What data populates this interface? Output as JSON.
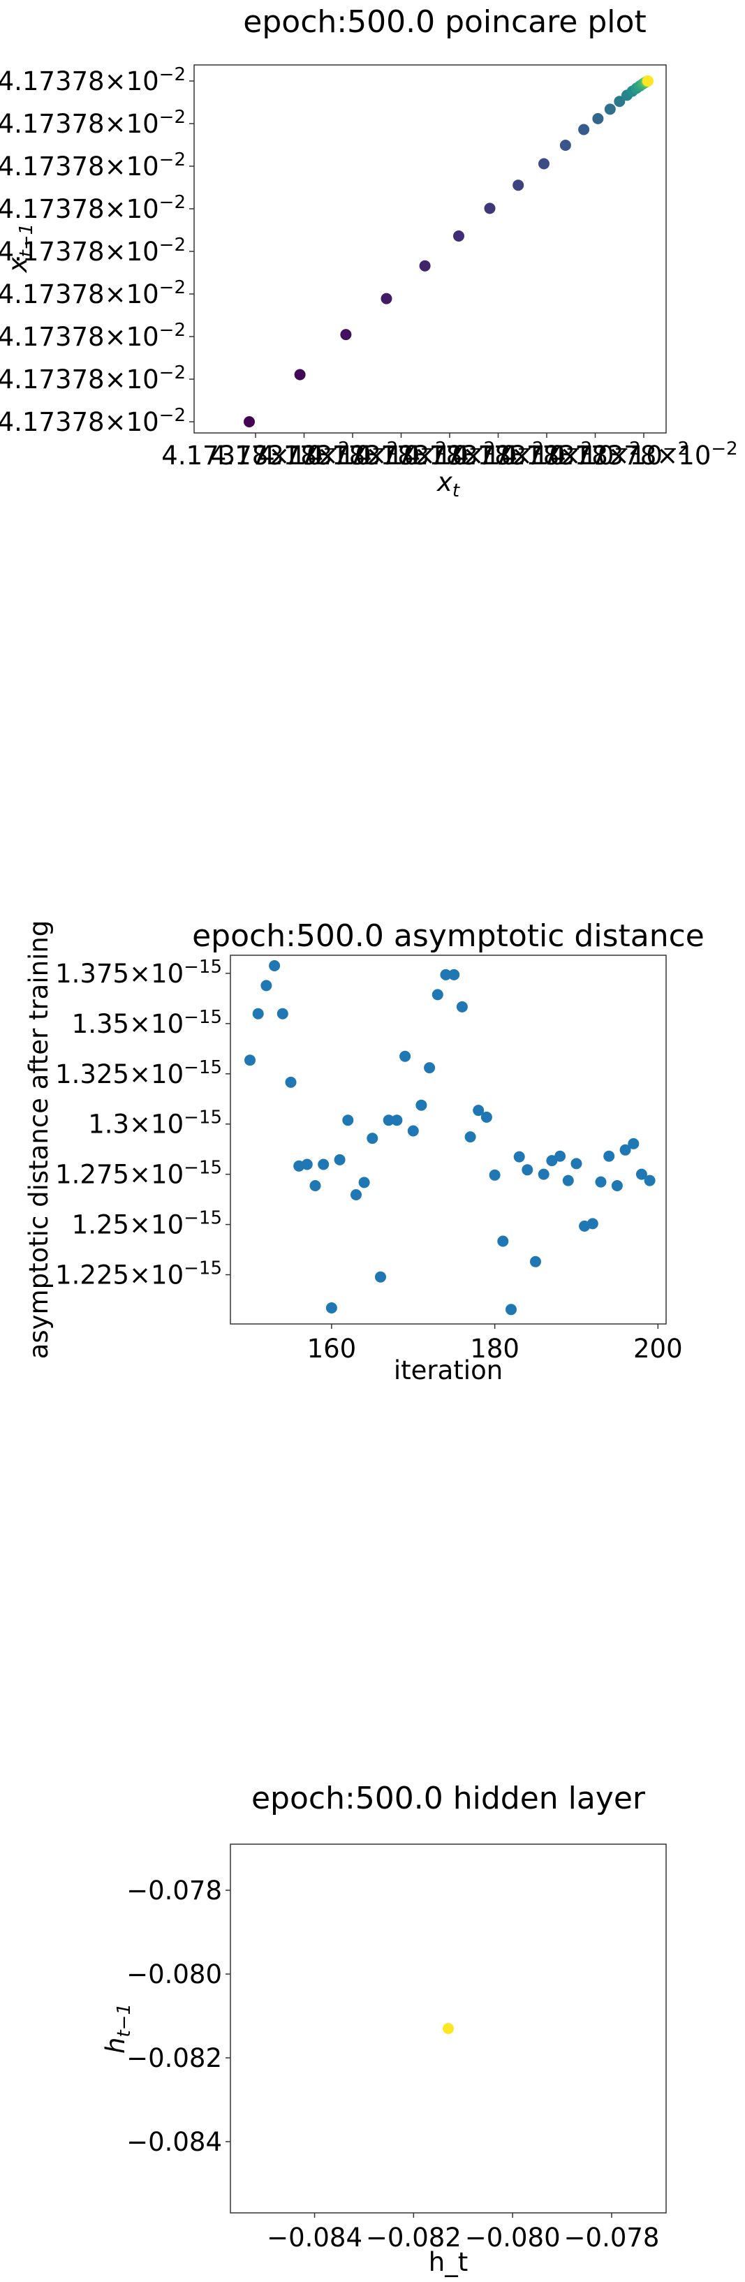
{
  "chart_data": [
    {
      "type": "scatter",
      "title": "epoch:500.0 poincare plot",
      "xlabel": "x_t",
      "ylabel": "x_{t-1}",
      "x_tick_labels": [
        "4.17378 × 10^-2",
        "4.17378 × 10^-2",
        "4.17378 × 10^-2",
        "4.17378 × 10^-2",
        "4.17378 × 10^-2",
        "4.17378 × 10^-2",
        "4.17378 × 10^-2",
        "4.17378 × 10^-2",
        "4.17378 × 10^-2"
      ],
      "y_tick_labels": [
        "4.17378 × 10^-2",
        "4.17378 × 10^-2",
        "4.17378 × 10^-2",
        "4.17378 × 10^-2",
        "4.17378 × 10^-2",
        "4.17378 × 10^-2",
        "4.17378 × 10^-2",
        "4.17378 × 10^-2",
        "4.17378 × 10^-2"
      ],
      "colormap": "viridis",
      "points": [
        {
          "x": 0.0,
          "y": 0.0,
          "c": 0.0
        },
        {
          "x": 0.1271,
          "y": 0.1384,
          "c": 0.02
        },
        {
          "x": 0.2424,
          "y": 0.2559,
          "c": 0.05
        },
        {
          "x": 0.3441,
          "y": 0.3615,
          "c": 0.08
        },
        {
          "x": 0.4407,
          "y": 0.4575,
          "c": 0.11
        },
        {
          "x": 0.5254,
          "y": 0.5451,
          "c": 0.14
        },
        {
          "x": 0.6034,
          "y": 0.6263,
          "c": 0.17
        },
        {
          "x": 0.6746,
          "y": 0.6942,
          "c": 0.2
        },
        {
          "x": 0.739,
          "y": 0.7572,
          "c": 0.23
        },
        {
          "x": 0.7932,
          "y": 0.8115,
          "c": 0.26
        },
        {
          "x": 0.839,
          "y": 0.8575,
          "c": 0.29
        },
        {
          "x": 0.8746,
          "y": 0.8895,
          "c": 0.33
        },
        {
          "x": 0.9051,
          "y": 0.9172,
          "c": 0.37
        },
        {
          "x": 0.9288,
          "y": 0.9402,
          "c": 0.41
        },
        {
          "x": 0.9475,
          "y": 0.9581,
          "c": 0.45
        },
        {
          "x": 0.961,
          "y": 0.9701,
          "c": 0.49
        },
        {
          "x": 0.9712,
          "y": 0.9787,
          "c": 0.53
        },
        {
          "x": 0.9797,
          "y": 0.9855,
          "c": 0.57
        },
        {
          "x": 0.9864,
          "y": 0.9908,
          "c": 0.61
        },
        {
          "x": 0.9915,
          "y": 0.9946,
          "c": 0.66
        },
        {
          "x": 0.9949,
          "y": 0.997,
          "c": 0.71
        },
        {
          "x": 0.9975,
          "y": 0.9986,
          "c": 0.77
        },
        {
          "x": 0.999,
          "y": 0.9995,
          "c": 0.84
        },
        {
          "x": 0.9997,
          "y": 0.9999,
          "c": 0.92
        },
        {
          "x": 1.0,
          "y": 1.0,
          "c": 1.0
        }
      ]
    },
    {
      "type": "scatter",
      "title": "epoch:500.0 asymptotic distance",
      "xlabel": "iteration",
      "ylabel": "asymptotic distance after training",
      "xlim": [
        147.6,
        201.0
      ],
      "ylim": [
        1.2005e-15,
        1.384e-15
      ],
      "x_ticks": [
        160,
        180,
        200
      ],
      "y_ticks": [
        {
          "value": 1.225e-15,
          "label": "1.225",
          "exp": "-15"
        },
        {
          "value": 1.25e-15,
          "label": "1.25",
          "exp": "-15"
        },
        {
          "value": 1.275e-15,
          "label": "1.275",
          "exp": "-15"
        },
        {
          "value": 1.3e-15,
          "label": "1.3",
          "exp": "-15"
        },
        {
          "value": 1.325e-15,
          "label": "1.325",
          "exp": "-15"
        },
        {
          "value": 1.35e-15,
          "label": "1.35",
          "exp": "-15"
        },
        {
          "value": 1.375e-15,
          "label": "1.375",
          "exp": "-15"
        }
      ],
      "color": "#1f77b4",
      "x": [
        150,
        151,
        152,
        153,
        154,
        155,
        156,
        157,
        158,
        159,
        160,
        161,
        162,
        163,
        164,
        165,
        166,
        167,
        168,
        169,
        170,
        171,
        172,
        173,
        174,
        175,
        176,
        177,
        178,
        179,
        180,
        181,
        182,
        183,
        184,
        185,
        186,
        187,
        188,
        189,
        190,
        191,
        192,
        193,
        194,
        195,
        196,
        197,
        198,
        199
      ],
      "y": [
        1.3318e-15,
        1.3549e-15,
        1.3689e-15,
        1.3788e-15,
        1.3549e-15,
        1.3208e-15,
        1.2791e-15,
        1.2799e-15,
        1.2693e-15,
        1.2799e-15,
        1.2085e-15,
        1.2822e-15,
        1.3019e-15,
        1.2648e-15,
        1.2709e-15,
        1.2929e-15,
        1.2239e-15,
        1.3019e-15,
        1.3019e-15,
        1.3337e-15,
        1.2966e-15,
        1.3094e-15,
        1.328e-15,
        1.3644e-15,
        1.3743e-15,
        1.3743e-15,
        1.3583e-15,
        1.2936e-15,
        1.3068e-15,
        1.3034e-15,
        1.2746e-15,
        1.2417e-15,
        1.2077e-15,
        1.2837e-15,
        1.2772e-15,
        1.2315e-15,
        1.275e-15,
        1.2818e-15,
        1.284e-15,
        1.2719e-15,
        1.2803e-15,
        1.2492e-15,
        1.2504e-15,
        1.2712e-15,
        1.284e-15,
        1.2693e-15,
        1.2871e-15,
        1.2902e-15,
        1.275e-15,
        1.2719e-15
      ]
    },
    {
      "type": "scatter",
      "title": "epoch:500.0 hidden layer",
      "xlabel": "h_t",
      "ylabel": "h_{t-1}",
      "xlim": [
        -0.0857,
        -0.0769
      ],
      "ylim": [
        -0.0857,
        -0.0769
      ],
      "x_ticks": [
        -0.084,
        -0.082,
        -0.08,
        -0.078
      ],
      "y_ticks": [
        -0.084,
        -0.082,
        -0.08,
        -0.078
      ],
      "x_tick_labels": [
        "−0.084",
        "−0.082",
        "−0.080",
        "−0.078"
      ],
      "y_tick_labels": [
        "−0.084",
        "−0.082",
        "−0.080",
        "−0.078"
      ],
      "color": "#fde725",
      "points": [
        {
          "x": -0.0813,
          "y": -0.0813
        }
      ]
    }
  ]
}
